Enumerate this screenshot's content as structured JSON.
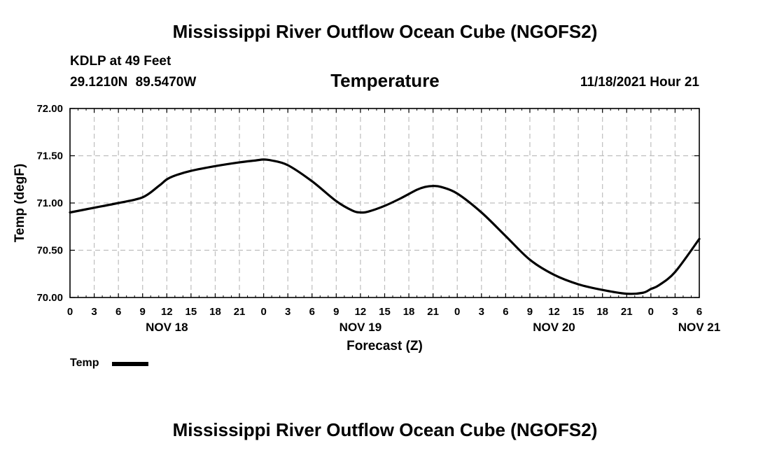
{
  "header": {
    "title": "Mississippi River Outflow Ocean Cube (NGOFS2)",
    "station": "KDLP at 49 Feet",
    "coords": "29.1210N  89.5470W",
    "subtitle": "Temperature",
    "datetime": "11/18/2021 Hour 21"
  },
  "footer": {
    "title": "Mississippi River Outflow Ocean Cube (NGOFS2)"
  },
  "legend": {
    "label": "Temp"
  },
  "chart_data": {
    "type": "line",
    "title": "Temperature",
    "xlabel": "Forecast (Z)",
    "ylabel": "Temp (degF)",
    "ylim": [
      70.0,
      72.0
    ],
    "yticks": [
      "70.00",
      "70.50",
      "71.00",
      "71.50",
      "72.00"
    ],
    "xlim": [
      0,
      78
    ],
    "xticks": [
      0,
      3,
      6,
      9,
      12,
      15,
      18,
      21,
      24,
      27,
      30,
      33,
      36,
      39,
      42,
      45,
      48,
      51,
      54,
      57,
      60,
      63,
      66,
      69,
      72,
      75,
      78
    ],
    "xtick_labels": [
      "0",
      "3",
      "6",
      "9",
      "12",
      "15",
      "18",
      "21",
      "0",
      "3",
      "6",
      "9",
      "12",
      "15",
      "18",
      "21",
      "0",
      "3",
      "6",
      "9",
      "12",
      "15",
      "18",
      "21",
      "0",
      "3",
      "6"
    ],
    "day_labels": [
      {
        "label": "NOV 18",
        "hour": 12
      },
      {
        "label": "NOV 19",
        "hour": 36
      },
      {
        "label": "NOV 20",
        "hour": 60
      },
      {
        "label": "NOV 21",
        "hour": 78
      }
    ],
    "grid": true,
    "legend_position": "bottom-left",
    "series": [
      {
        "name": "Temp",
        "color": "#000000",
        "x": [
          0,
          3,
          6,
          9,
          11,
          12,
          13,
          15,
          18,
          21,
          23,
          24,
          25,
          27,
          30,
          33,
          35,
          36,
          37,
          39,
          41,
          43,
          44,
          45,
          46,
          48,
          51,
          54,
          57,
          60,
          63,
          66,
          69,
          71,
          72,
          73,
          75,
          78
        ],
        "y": [
          70.9,
          70.95,
          71.0,
          71.06,
          71.18,
          71.25,
          71.29,
          71.34,
          71.39,
          71.43,
          71.45,
          71.46,
          71.45,
          71.4,
          71.23,
          71.02,
          70.92,
          70.9,
          70.91,
          70.97,
          71.05,
          71.14,
          71.17,
          71.18,
          71.17,
          71.1,
          70.9,
          70.65,
          70.4,
          70.24,
          70.14,
          70.08,
          70.04,
          70.05,
          70.09,
          70.13,
          70.27,
          70.62
        ]
      }
    ]
  }
}
